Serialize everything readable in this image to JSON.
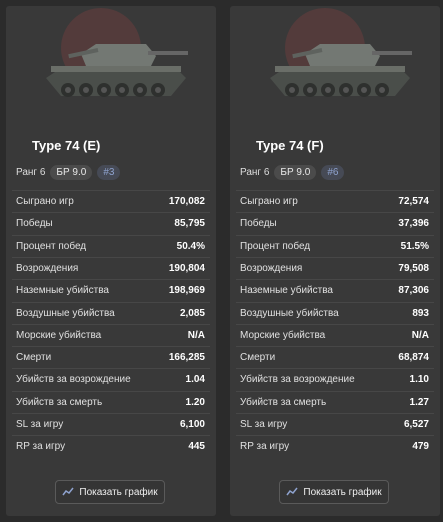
{
  "cards": [
    {
      "title": "Type 74 (E)",
      "rank": "Ранг 6",
      "br": "БР 9.0",
      "position": "#3",
      "stats": [
        [
          "Сыграно игр",
          "170,082"
        ],
        [
          "Победы",
          "85,795"
        ],
        [
          "Процент побед",
          "50.4%"
        ],
        [
          "Возрождения",
          "190,804"
        ],
        [
          "Наземные убийства",
          "198,969"
        ],
        [
          "Воздушные убийства",
          "2,085"
        ],
        [
          "Морские убийства",
          "N/A"
        ],
        [
          "Смерти",
          "166,285"
        ],
        [
          "Убийств за возрождение",
          "1.04"
        ],
        [
          "Убийств за смерть",
          "1.20"
        ],
        [
          "SL за игру",
          "6,100"
        ],
        [
          "RP за игру",
          "445"
        ]
      ],
      "button": "Показать график"
    },
    {
      "title": "Type 74 (F)",
      "rank": "Ранг 6",
      "br": "БР 9.0",
      "position": "#6",
      "stats": [
        [
          "Сыграно игр",
          "72,574"
        ],
        [
          "Победы",
          "37,396"
        ],
        [
          "Процент побед",
          "51.5%"
        ],
        [
          "Возрождения",
          "79,508"
        ],
        [
          "Наземные убийства",
          "87,306"
        ],
        [
          "Воздушные убийства",
          "893"
        ],
        [
          "Морские убийства",
          "N/A"
        ],
        [
          "Смерти",
          "68,874"
        ],
        [
          "Убийств за возрождение",
          "1.10"
        ],
        [
          "Убийств за смерть",
          "1.27"
        ],
        [
          "SL за игру",
          "6,527"
        ],
        [
          "RP за игру",
          "479"
        ]
      ],
      "button": "Показать график"
    }
  ]
}
